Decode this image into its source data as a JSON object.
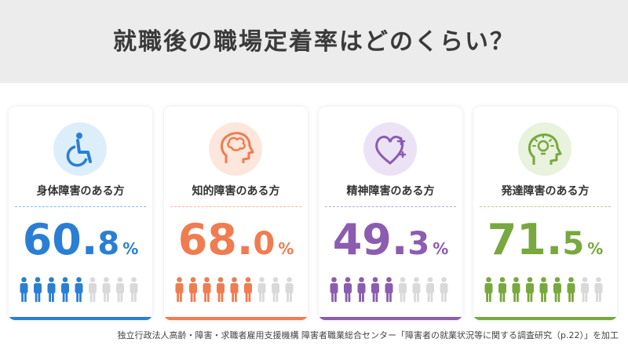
{
  "title": "就職後の職場定着率はどのくらい？",
  "footer": "独立行政法人高齢・障害・求職者雇用支援機構 障害者職業総合センター「障害者の就業状況等に関する調査研究（p.22）」を加工",
  "cards": [
    {
      "label": "身体障害のある方",
      "int": "60",
      "dot": ".",
      "dec": "8",
      "pct": "%",
      "rate": 0.608,
      "filled": 5,
      "total": 9,
      "color": "#2a7fd4",
      "icon": "wheelchair-icon",
      "icon_bg": "#ddeefb"
    },
    {
      "label": "知的障害のある方",
      "int": "68",
      "dot": ".",
      "dec": "0",
      "pct": "%",
      "rate": 0.68,
      "filled": 6,
      "total": 9,
      "color": "#f07c50",
      "icon": "head-brain-icon",
      "icon_bg": "#fde6dc"
    },
    {
      "label": "精神障害のある方",
      "int": "49",
      "dot": ".",
      "dec": "3",
      "pct": "%",
      "rate": 0.493,
      "filled": 5,
      "total": 9,
      "color": "#8b5cb0",
      "icon": "heart-plus-icon",
      "icon_bg": "#ece2f5"
    },
    {
      "label": "発達障害のある方",
      "int": "71",
      "dot": ".",
      "dec": "5",
      "pct": "%",
      "rate": 0.715,
      "filled": 7,
      "total": 9,
      "color": "#78a83e",
      "icon": "head-lightbulb-icon",
      "icon_bg": "#e8f2dc"
    }
  ]
}
